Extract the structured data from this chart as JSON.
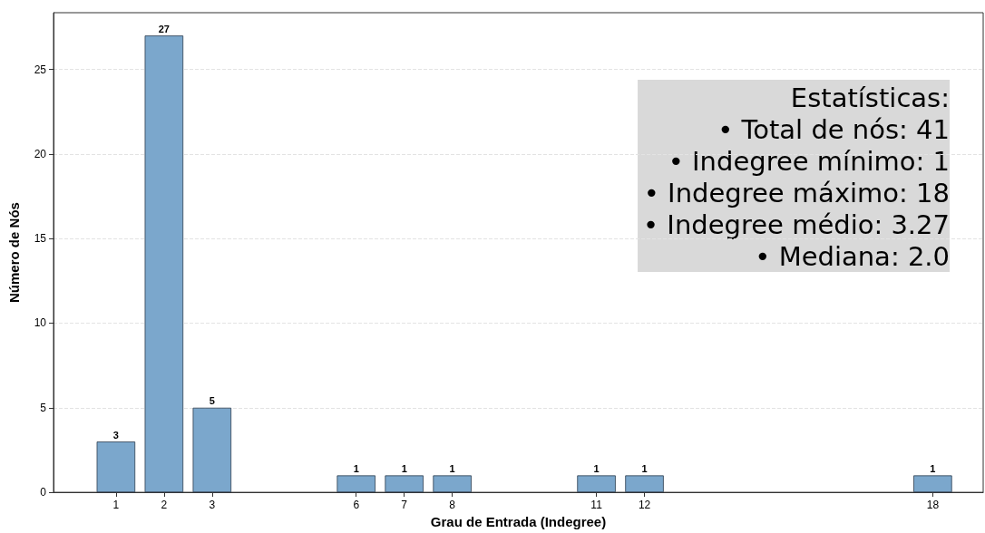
{
  "chart_data": {
    "type": "bar",
    "xlabel": "Grau de Entrada (Indegree)",
    "ylabel": "Número de Nós",
    "x": [
      1,
      2,
      3,
      6,
      7,
      8,
      11,
      12,
      18
    ],
    "values": [
      3,
      27,
      5,
      1,
      1,
      1,
      1,
      1,
      1
    ],
    "color": "#7ba7cc",
    "xlim": [
      -0.3,
      19.05
    ],
    "xticks": [
      1,
      2,
      3,
      6,
      7,
      8,
      11,
      12,
      18
    ],
    "ylim": [
      0,
      28.35
    ],
    "yticks": [
      0,
      5,
      10,
      15,
      20,
      25
    ],
    "grid": "y",
    "data_labels": true,
    "annotations": [
      "Estatísticas:",
      "• Total de nós: 41",
      "• Indegree mínimo: 1",
      "• Indegree máximo: 18",
      "• Indegree médio: 3.27",
      "• Mediana: 2.0"
    ]
  }
}
